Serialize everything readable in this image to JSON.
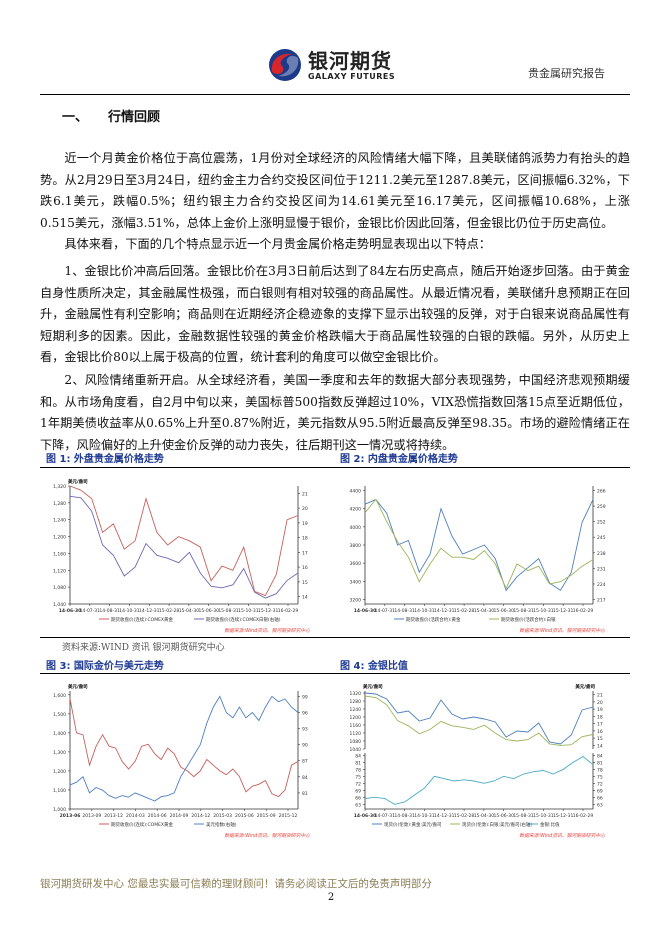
{
  "header": {
    "logo_cn": "银河期货",
    "logo_en": "GALAXY FUTURES",
    "report_type": "贵金属研究报告"
  },
  "section": {
    "number": "一、",
    "title": "行情回顾"
  },
  "paragraphs": [
    "近一个月黄金价格位于高位震荡，1月份对全球经济的风险情绪大幅下降，且美联储鸽派势力有抬头的趋势。从2月29日至3月24日，纽约金主力合约交投区间位于1211.2美元至1287.8美元，区间振幅6.32%，下跌6.1美元，跌幅0.5%；纽约银主力合约交投区间为14.61美元至16.17美元，区间振幅10.68%，上涨0.515美元，涨幅3.51%，总体上金价上涨明显慢于银价，金银比价因此回落，但金银比仍位于历史高位。",
    "具体来看，下面的几个特点显示近一个月贵金属价格走势明显表现出以下特点：",
    "1、金银比价冲高后回落。金银比价在3月3日前后达到了84左右历史高点，随后开始逐步回落。由于黄金自身性质所决定，其金融属性极强，而白银则有相对较强的商品属性。从最近情况看，美联储升息预期正在回升，金融属性有利空影响；商品则在近期经济企稳迹象的支撑下显示出较强的反弹，对于白银来说商品属性有短期利多的因素。因此，金融数据性较强的黄金价格跌幅大于商品属性较强的白银的跌幅。另外，从历史上看，金银比价80以上属于极高的位置，统计套利的角度可以做空金银比价。",
    "2、风险情绪重新开启。从全球经济看，美国一季度和去年的数据大部分表现强势，中国经济悲观预期缓和。从市场角度看，自2月中旬以来，美国标普500指数反弹超过10%，VIX恐慌指数回落15点至近期低位，1年期美债收益率从0.65%上升至0.87%附近，美元指数从95.5附近最高反弹至98.35。市场的避险情绪正在下降，风险偏好的上升使金价反弹的动力丧失，往后期刊这一情况或将持续。"
  ],
  "figures": {
    "fig1_caption": "图 1: 外盘贵金属价格走势",
    "fig2_caption": "图 2: 内盘贵金属价格走势",
    "fig3_caption": "图 3: 国际金价与美元走势",
    "fig4_caption": "图 4: 金银比值",
    "source": "资料来源:WIND 资讯  银河期货研究中心"
  },
  "colors": {
    "gold_red": "#c8605c",
    "silver_purple": "#7468b4",
    "blue": "#4f7fc0",
    "green": "#9bb55a",
    "cyan": "#4bacc6",
    "caption_blue": "#1f3a93",
    "chart_source_red": "#e8403a"
  },
  "chart_data": [
    {
      "type": "line",
      "id": "fig1",
      "unit_left": "美元/盎司",
      "unit_right": "",
      "x_ticks": [
        "14-06-30",
        "14-07-31",
        "14-08-31",
        "14-10-31",
        "14-12-31",
        "15-02-28",
        "15-04-30",
        "15-06-30",
        "15-08-31",
        "15-10-31",
        "15-12-31",
        "16-02-29"
      ],
      "y_left": {
        "lim": [
          1040,
          1320
        ],
        "ticks": [
          "1,040",
          "1,080",
          "1,120",
          "1,160",
          "1,200",
          "1,240",
          "1,280",
          "1,320"
        ]
      },
      "y_right": {
        "lim": [
          13.5,
          21.5
        ],
        "ticks": [
          "14",
          "15",
          "16",
          "17",
          "18",
          "19",
          "20",
          "21"
        ]
      },
      "series": [
        {
          "name": "期货收盘价(连续):COMEX黄金",
          "axis": "left",
          "color": "#c8605c",
          "values": [
            1320,
            1310,
            1290,
            1210,
            1230,
            1170,
            1190,
            1290,
            1210,
            1180,
            1200,
            1190,
            1175,
            1095,
            1130,
            1120,
            1175,
            1070,
            1060,
            1110,
            1240,
            1250
          ]
        },
        {
          "name": "期货收盘价(连续):COMEX白银(右轴)",
          "axis": "right",
          "color": "#7468b4",
          "values": [
            20.8,
            20.7,
            19.8,
            17.5,
            16.8,
            15.4,
            16.0,
            17.6,
            16.8,
            16.6,
            16.3,
            17.0,
            15.6,
            14.7,
            14.6,
            14.8,
            15.9,
            14.3,
            13.9,
            14.2,
            15.1,
            15.6
          ]
        }
      ],
      "note": "数据来源:Wind资讯、银河期货研究中心"
    },
    {
      "type": "line",
      "id": "fig2",
      "x_ticks": [
        "14-06-30",
        "14-07-31",
        "14-08-31",
        "14-10-31",
        "14-12-31",
        "15-02-28",
        "15-04-30",
        "15-06-30",
        "15-08-31",
        "15-10-31",
        "15-12-31",
        "16-02-29"
      ],
      "y_left": {
        "lim": [
          3150,
          4450
        ],
        "ticks": [
          "3200",
          "3400",
          "3600",
          "3800",
          "4000",
          "4200",
          "4400"
        ]
      },
      "y_right": {
        "lim": [
          215,
          268
        ],
        "ticks": [
          "217",
          "224",
          "231",
          "238",
          "245",
          "252",
          "259",
          "266"
        ]
      },
      "series": [
        {
          "name": "期货收盘价(活跃合约):黄金",
          "axis": "left",
          "color": "#4f7fc0",
          "values": [
            4250,
            4300,
            4150,
            3800,
            3850,
            3500,
            3700,
            4200,
            3900,
            3700,
            3750,
            3800,
            3650,
            3300,
            3450,
            3550,
            3650,
            3380,
            3300,
            3500,
            4050,
            4300
          ]
        },
        {
          "name": "期货收盘价(活跃合约):白银",
          "axis": "right",
          "color": "#9bb55a",
          "values": [
            256,
            262,
            252,
            243,
            236,
            225,
            233,
            240,
            236,
            236,
            235,
            239,
            233,
            222,
            233,
            230,
            232,
            224,
            225,
            228,
            232,
            235
          ]
        }
      ],
      "note": "数据来源:Wind资讯、银河期货研究中心"
    },
    {
      "type": "line",
      "id": "fig3",
      "unit_left": "美元/盎司",
      "unit_right": "",
      "x_ticks": [
        "2013-06",
        "2013-09",
        "2013-12",
        "2014-03",
        "2014-06",
        "2014-09",
        "2014-12",
        "2015-03",
        "2015-06",
        "2015-09",
        "2015-12"
      ],
      "y_left": {
        "lim": [
          1000,
          1620
        ],
        "ticks": [
          "1,000",
          "1,100",
          "1,200",
          "1,300",
          "1,400",
          "1,500",
          "1,600"
        ]
      },
      "y_right": {
        "lim": [
          78,
          100
        ],
        "ticks": [
          "81",
          "84",
          "87",
          "90",
          "93",
          "96",
          "99"
        ]
      },
      "series": [
        {
          "name": "期货收盘价(连续):COMEX黄金",
          "axis": "left",
          "color": "#c8605c",
          "values": [
            1580,
            1400,
            1390,
            1230,
            1330,
            1390,
            1330,
            1320,
            1250,
            1210,
            1250,
            1330,
            1340,
            1290,
            1260,
            1320,
            1290,
            1220,
            1200,
            1170,
            1200,
            1260,
            1230,
            1200,
            1180,
            1210,
            1170,
            1090,
            1120,
            1130,
            1150,
            1080,
            1065,
            1100,
            1230,
            1250
          ]
        },
        {
          "name": "美元指数(右轴)",
          "axis": "right",
          "color": "#4f7fc0",
          "values": [
            82.5,
            83,
            84,
            81,
            82,
            81.5,
            80.5,
            80,
            80.5,
            80.2,
            81,
            80.5,
            80,
            79.5,
            80.3,
            80.5,
            81,
            84,
            86,
            88,
            90,
            94,
            97,
            99,
            96,
            95,
            97,
            95,
            96,
            94.5,
            97,
            99,
            98,
            98.5,
            97,
            96
          ]
        }
      ],
      "note": "数据来源:Wind资讯、银河期货研究中心"
    },
    {
      "type": "line",
      "id": "fig4",
      "unit_left": "美元/盎司",
      "unit_right": "美元/盎司",
      "x_ticks": [
        "14-06-30",
        "14-07-31",
        "14-08-31",
        "14-10-31",
        "14-12-31",
        "15-02-28",
        "15-04-30",
        "15-06-30",
        "15-08-31",
        "15-10-31",
        "15-12-31",
        "16-02-29"
      ],
      "y_left": {
        "lim": [
          1040,
          1330
        ],
        "ticks": [
          "1040",
          "1080",
          "1120",
          "1160",
          "1200",
          "1240",
          "1280",
          "1320"
        ]
      },
      "y_right": {
        "lim": [
          13.5,
          21.5
        ],
        "ticks": [
          "14",
          "15",
          "16",
          "17",
          "18",
          "19",
          "20",
          "21"
        ]
      },
      "y_lower": {
        "lim": [
          61,
          85
        ],
        "ticks": [
          "63",
          "66",
          "69",
          "72",
          "75",
          "78",
          "81",
          "84"
        ]
      },
      "series": [
        {
          "name": "现货价(伦敦):黄金:美元/盎司",
          "axis": "left",
          "color": "#4f7fc0",
          "values": [
            1320,
            1315,
            1290,
            1220,
            1230,
            1180,
            1195,
            1285,
            1215,
            1190,
            1200,
            1190,
            1175,
            1100,
            1130,
            1125,
            1170,
            1075,
            1065,
            1110,
            1235,
            1250
          ]
        },
        {
          "name": "现货价(伦敦):白银:美元/盎司(右轴)",
          "axis": "right",
          "color": "#9bb55a",
          "values": [
            20.8,
            20.6,
            19.6,
            17.4,
            16.7,
            15.6,
            16.2,
            17.3,
            16.7,
            16.5,
            16.2,
            16.8,
            15.7,
            14.8,
            14.6,
            14.8,
            15.7,
            14.2,
            14.0,
            14.1,
            15.2,
            15.5
          ]
        },
        {
          "name": "金银:比值",
          "axis": "lower",
          "color": "#4bacc6",
          "values": [
            65.5,
            66,
            65.5,
            63,
            64,
            67,
            70,
            75,
            74,
            73,
            73.5,
            73,
            72,
            73,
            75,
            74,
            76,
            77,
            77.5,
            76,
            78,
            81,
            83.5,
            80
          ]
        }
      ],
      "note": "数据来源:Wind资讯、银河期货研究中心"
    }
  ],
  "footer": {
    "text": "银河期货研发中心 您最忠实最可信赖的理财顾问！请务必阅读正文后的免责声明部分",
    "page": "2"
  }
}
